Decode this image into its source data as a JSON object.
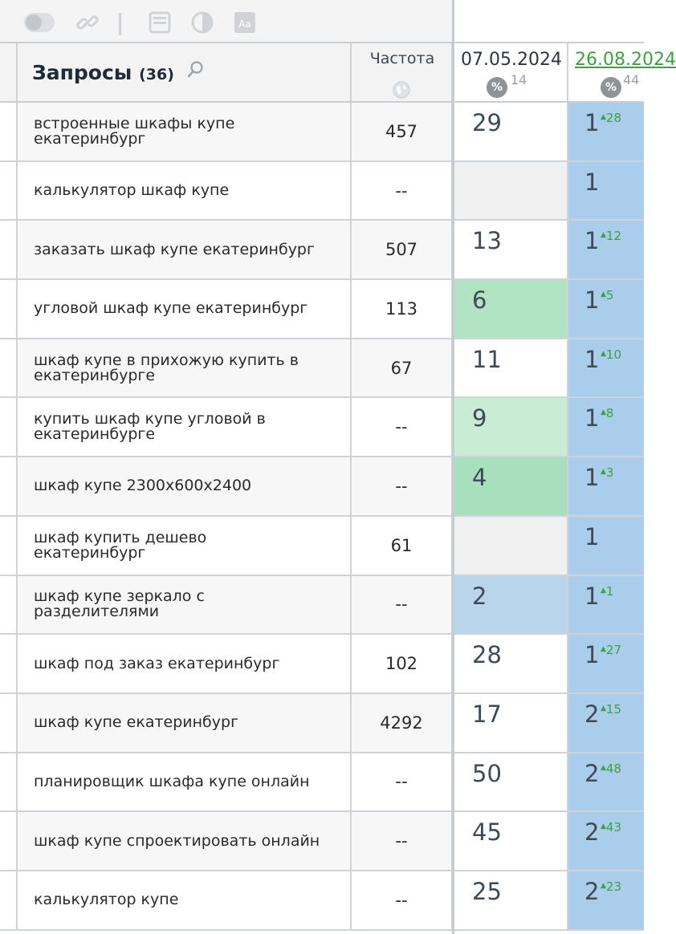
{
  "header": {
    "query_title": "Запросы",
    "query_count": "(36)",
    "freq_label": "Частота",
    "date1": "07.05.2024",
    "date1_pct": "%",
    "date1_count": "14",
    "date2": "26.08.2024",
    "date2_pct": "%",
    "date2_count": "44",
    "font_icon_text": "Aa"
  },
  "colors": {
    "empty_cell": "#f0f0f0",
    "green_strong": "#a8dfbc",
    "green_mid": "#b2e4c3",
    "green_light": "#c9ecd5",
    "blue": "#b9d5ec",
    "blue_col": "#a9cdea",
    "delta_green": "#3da23c"
  },
  "rows": [
    {
      "query": "встроенные шкафы купе екатеринбург",
      "freq": "457",
      "pos1": "29",
      "pos1_bg": "#ffffff",
      "pos2": "1",
      "delta": "28"
    },
    {
      "query": "калькулятор шкаф купе",
      "freq": "--",
      "pos1": "",
      "pos1_bg": "#f0f0f0",
      "pos2": "1",
      "delta": ""
    },
    {
      "query": "заказать шкаф купе екатеринбург",
      "freq": "507",
      "pos1": "13",
      "pos1_bg": "#ffffff",
      "pos2": "1",
      "delta": "12"
    },
    {
      "query": "угловой шкаф купе екатеринбург",
      "freq": "113",
      "pos1": "6",
      "pos1_bg": "#b2e4c3",
      "pos2": "1",
      "delta": "5"
    },
    {
      "query": "шкаф купе в прихожую купить в екатеринбурге",
      "freq": "67",
      "pos1": "11",
      "pos1_bg": "#ffffff",
      "pos2": "1",
      "delta": "10"
    },
    {
      "query": "купить шкаф купе угловой в екатеринбурге",
      "freq": "--",
      "pos1": "9",
      "pos1_bg": "#c9ecd5",
      "pos2": "1",
      "delta": "8"
    },
    {
      "query": "шкаф купе 2300x600x2400",
      "freq": "--",
      "pos1": "4",
      "pos1_bg": "#a8dfbc",
      "pos2": "1",
      "delta": "3"
    },
    {
      "query": "шкаф купить дешево екатеринбург",
      "freq": "61",
      "pos1": "",
      "pos1_bg": "#f0f0f0",
      "pos2": "1",
      "delta": ""
    },
    {
      "query": "шкаф купе зеркало с разделителями",
      "freq": "--",
      "pos1": "2",
      "pos1_bg": "#b9d5ec",
      "pos2": "1",
      "delta": "1"
    },
    {
      "query": "шкаф под заказ екатеринбург",
      "freq": "102",
      "pos1": "28",
      "pos1_bg": "#ffffff",
      "pos2": "1",
      "delta": "27"
    },
    {
      "query": "шкаф купе екатеринбург",
      "freq": "4292",
      "pos1": "17",
      "pos1_bg": "#ffffff",
      "pos2": "2",
      "delta": "15"
    },
    {
      "query": "планировщик шкафа купе онлайн",
      "freq": "--",
      "pos1": "50",
      "pos1_bg": "#ffffff",
      "pos2": "2",
      "delta": "48"
    },
    {
      "query": "шкаф купе спроектировать онлайн",
      "freq": "--",
      "pos1": "45",
      "pos1_bg": "#ffffff",
      "pos2": "2",
      "delta": "43"
    },
    {
      "query": "калькулятор купе",
      "freq": "--",
      "pos1": "25",
      "pos1_bg": "#ffffff",
      "pos2": "2",
      "delta": "23"
    }
  ]
}
